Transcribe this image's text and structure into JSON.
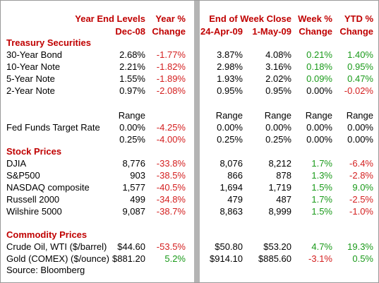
{
  "header": {
    "year_end_levels": "Year End Levels",
    "year_pct": "Year %",
    "end_of_week_close": "End of Week Close",
    "week_pct": "Week %",
    "ytd_pct": "YTD %",
    "columns": [
      "Dec-08",
      "Change",
      "24-Apr-09",
      "1-May-09",
      "Change",
      "Change"
    ]
  },
  "sections": [
    {
      "title": "Treasury Securities",
      "rows": [
        {
          "label": "30-Year Bond",
          "cells": [
            "2.68%",
            "-1.77%",
            "3.87%",
            "4.08%",
            "0.21%",
            "1.40%"
          ]
        },
        {
          "label": "10-Year Note",
          "cells": [
            "2.21%",
            "-1.82%",
            "2.98%",
            "3.16%",
            "0.18%",
            "0.95%"
          ]
        },
        {
          "label": "5-Year Note",
          "cells": [
            "1.55%",
            "-1.89%",
            "1.93%",
            "2.02%",
            "0.09%",
            "0.47%"
          ]
        },
        {
          "label": "2-Year Note",
          "cells": [
            "0.97%",
            "-2.08%",
            "0.95%",
            "0.95%",
            "0.00%",
            "-0.02%"
          ]
        }
      ]
    },
    {
      "rows": [
        {
          "cells": [
            "Range",
            null,
            "Range",
            "Range",
            "Range",
            "Range"
          ]
        },
        {
          "label": "Fed Funds Target Rate",
          "cells": [
            "0.00%",
            "-4.25%",
            "0.00%",
            "0.00%",
            "0.00%",
            "0.00%"
          ]
        },
        {
          "cells": [
            "0.25%",
            "-4.00%",
            "0.25%",
            "0.25%",
            "0.00%",
            "0.00%"
          ]
        }
      ]
    },
    {
      "title": "Stock Prices",
      "rows": [
        {
          "label": "DJIA",
          "cells": [
            "8,776",
            "-33.8%",
            "8,076",
            "8,212",
            "1.7%",
            "-6.4%"
          ]
        },
        {
          "label": "S&P500",
          "cells": [
            "903",
            "-38.5%",
            "866",
            "878",
            "1.3%",
            "-2.8%"
          ]
        },
        {
          "label": "NASDAQ composite",
          "cells": [
            "1,577",
            "-40.5%",
            "1,694",
            "1,719",
            "1.5%",
            "9.0%"
          ]
        },
        {
          "label": "Russell 2000",
          "cells": [
            "499",
            "-34.8%",
            "479",
            "487",
            "1.7%",
            "-2.5%"
          ]
        },
        {
          "label": "Wilshire 5000",
          "cells": [
            "9,087",
            "-38.7%",
            "8,863",
            "8,999",
            "1.5%",
            "-1.0%"
          ]
        }
      ]
    },
    {
      "title": "Commodity Prices",
      "rows": [
        {
          "label": "Crude Oil, WTI ($/barrel)",
          "cells": [
            "$44.60",
            "-53.5%",
            "$50.80",
            "$53.20",
            "4.7%",
            "19.3%"
          ]
        },
        {
          "label": "Gold (COMEX) ($/ounce)",
          "cells": [
            "$881.20",
            "5.2%",
            "$914.10",
            "$885.60",
            "-3.1%",
            "0.5%"
          ]
        }
      ]
    }
  ],
  "source": "Source: Bloomberg"
}
